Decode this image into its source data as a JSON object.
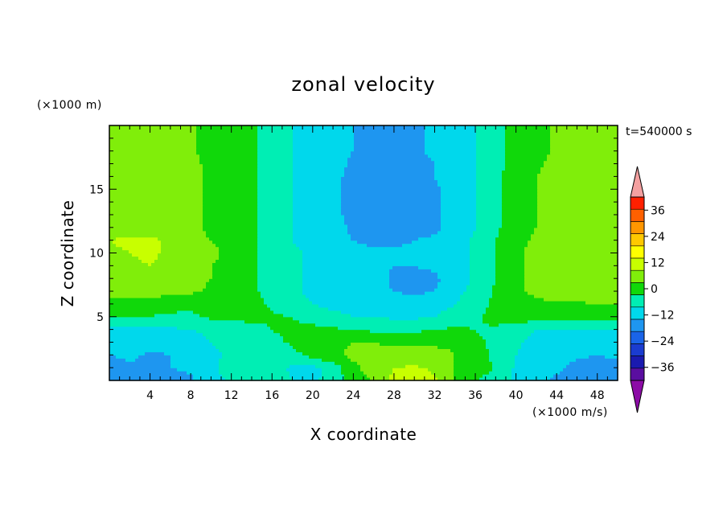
{
  "chart_data": {
    "type": "heatmap",
    "title": "zonal velocity",
    "time_label": "t=540000 s",
    "xlabel": "X coordinate",
    "ylabel": "Z coordinate",
    "x_unit": "(×1000 m/s)",
    "y_unit": "(×1000 m)",
    "xlim": [
      0,
      50
    ],
    "ylim": [
      0,
      20
    ],
    "x_ticks": [
      4,
      8,
      12,
      16,
      20,
      24,
      28,
      32,
      36,
      40,
      44,
      48
    ],
    "y_ticks": [
      5,
      10,
      15
    ],
    "colorbar": {
      "levels": [
        -42,
        -36,
        -30,
        -24,
        -18,
        -12,
        -6,
        0,
        6,
        12,
        18,
        24,
        30,
        36,
        42
      ],
      "tick_labels": [
        "36",
        "24",
        "12",
        "0",
        "−12",
        "−24",
        "−36"
      ],
      "tick_values": [
        36,
        24,
        12,
        0,
        -12,
        -24,
        -36
      ],
      "colors": [
        "#5a0ea0",
        "#1a1ab0",
        "#1a3cd0",
        "#1a64e8",
        "#1e96f0",
        "#00d8ec",
        "#00eeb4",
        "#10d80a",
        "#80ee0a",
        "#c8ff00",
        "#ffff00",
        "#ffc800",
        "#ff9600",
        "#ff6000",
        "#ff2000"
      ],
      "under_color": "#8c0ca6",
      "over_color": "#f4a0a0"
    },
    "x_nodes": [
      0,
      2,
      4,
      6,
      8,
      10,
      12,
      14,
      16,
      18,
      20,
      22,
      24,
      26,
      28,
      30,
      32,
      34,
      36,
      38,
      40,
      42,
      44,
      46,
      48,
      50
    ],
    "z_nodes": [
      0,
      1,
      2,
      3,
      4,
      5,
      6,
      7,
      8,
      9,
      10,
      11,
      12,
      13,
      14,
      15,
      16,
      17,
      18,
      19,
      20
    ],
    "values": [
      [
        -17,
        -16,
        -15,
        -15,
        -13,
        -8,
        -5,
        -3,
        -2,
        -6,
        -7,
        -4,
        4,
        6,
        14,
        15,
        13,
        5,
        0,
        -1,
        -8,
        -10,
        -13,
        -17,
        -18,
        -16
      ],
      [
        -14,
        -13,
        -12,
        -12,
        -11,
        -7,
        -4,
        -2,
        -3,
        -7,
        -8,
        -4,
        5,
        8,
        12,
        13,
        11,
        6,
        1,
        0,
        -7,
        -9,
        -11,
        -14,
        -15,
        -14
      ],
      [
        -12,
        -11,
        -13,
        -12,
        -10,
        -7,
        -5,
        -4,
        -4,
        -2,
        2,
        5,
        7,
        8,
        8,
        9,
        8,
        6,
        2,
        -1,
        -6,
        -9,
        -10,
        -11,
        -12,
        -11
      ],
      [
        -10,
        -9,
        -10,
        -9,
        -8,
        -6,
        -5,
        -4,
        -2,
        1,
        4,
        5,
        6,
        6,
        5,
        5,
        5,
        5,
        1,
        -1,
        -5,
        -8,
        -9,
        -9,
        -9,
        -9
      ],
      [
        -8,
        -7,
        -7,
        -7,
        -6,
        -5,
        -4,
        -3,
        0,
        2,
        2,
        1,
        0,
        -1,
        -1,
        -1,
        0,
        1,
        0,
        -1,
        -4,
        -6,
        -7,
        -7,
        -7,
        -7
      ],
      [
        1,
        1,
        0,
        -1,
        -1,
        1,
        2,
        2,
        1,
        0,
        -3,
        -5,
        -6,
        -6,
        -7,
        -7,
        -6,
        -4,
        -1,
        2,
        3,
        3,
        2,
        3,
        3,
        3
      ],
      [
        3,
        3,
        2,
        2,
        1,
        2,
        3,
        2,
        -1,
        -4,
        -6,
        -7,
        -7,
        -8,
        -9,
        -9,
        -8,
        -6,
        -2,
        1,
        4,
        5,
        5,
        5,
        6,
        6
      ],
      [
        8,
        9,
        9,
        8,
        7,
        5,
        3,
        1,
        -2,
        -5,
        -7,
        -8,
        -9,
        -10,
        -12,
        -13,
        -12,
        -8,
        -4,
        1,
        5,
        7,
        9,
        10,
        11,
        11
      ],
      [
        9,
        10,
        10,
        9,
        8,
        6,
        4,
        1,
        -2,
        -5,
        -7,
        -8,
        -9,
        -10,
        -13,
        -14,
        -13,
        -9,
        -5,
        0,
        5,
        8,
        9,
        11,
        12,
        12
      ],
      [
        10,
        11,
        12,
        10,
        8,
        6,
        4,
        1,
        -2,
        -5,
        -7,
        -8,
        -10,
        -10,
        -12,
        -12,
        -11,
        -9,
        -5,
        0,
        5,
        8,
        9,
        10,
        11,
        11
      ],
      [
        11,
        12,
        13,
        11,
        9,
        7,
        5,
        1,
        -2,
        -5,
        -7,
        -9,
        -11,
        -11,
        -11,
        -11,
        -10,
        -9,
        -5,
        0,
        5,
        8,
        8,
        9,
        10,
        10
      ],
      [
        12,
        13,
        13,
        11,
        8,
        6,
        4,
        1,
        -2,
        -6,
        -8,
        -10,
        -12,
        -13,
        -13,
        -12,
        -11,
        -9,
        -5,
        0,
        4,
        7,
        8,
        9,
        10,
        10
      ],
      [
        10,
        10,
        10,
        9,
        7,
        5,
        3,
        1,
        -2,
        -6,
        -8,
        -10,
        -13,
        -14,
        -14,
        -14,
        -13,
        -10,
        -6,
        -1,
        3,
        6,
        7,
        9,
        10,
        10
      ],
      [
        9,
        10,
        10,
        9,
        8,
        5,
        2,
        1,
        -2,
        -6,
        -9,
        -11,
        -13,
        -14,
        -15,
        -15,
        -13,
        -10,
        -6,
        -1,
        3,
        6,
        8,
        10,
        11,
        11
      ],
      [
        9,
        9,
        10,
        9,
        8,
        5,
        1,
        1,
        -2,
        -6,
        -9,
        -11,
        -14,
        -15,
        -15,
        -15,
        -13,
        -10,
        -6,
        -1,
        3,
        6,
        9,
        11,
        11,
        11
      ],
      [
        9,
        9,
        9,
        9,
        8,
        5,
        1,
        1,
        -2,
        -6,
        -9,
        -11,
        -14,
        -15,
        -15,
        -15,
        -13,
        -10,
        -6,
        -1,
        2,
        6,
        9,
        11,
        11,
        11
      ],
      [
        8,
        8,
        9,
        8,
        8,
        5,
        1,
        1,
        -2,
        -6,
        -9,
        -11,
        -13,
        -15,
        -15,
        -14,
        -12,
        -9,
        -6,
        -1,
        2,
        6,
        8,
        10,
        11,
        11
      ],
      [
        7,
        8,
        8,
        8,
        7,
        5,
        1,
        1,
        -2,
        -6,
        -8,
        -10,
        -13,
        -14,
        -15,
        -14,
        -12,
        -9,
        -6,
        -1,
        1,
        5,
        8,
        10,
        10,
        10
      ],
      [
        7,
        7,
        8,
        8,
        7,
        4,
        2,
        1,
        -2,
        -6,
        -8,
        -10,
        -12,
        -14,
        -14,
        -13,
        -11,
        -9,
        -6,
        -1,
        1,
        4,
        7,
        9,
        10,
        10
      ],
      [
        7,
        7,
        8,
        8,
        7,
        4,
        2,
        1,
        -2,
        -6,
        -8,
        -10,
        -12,
        -14,
        -14,
        -13,
        -11,
        -9,
        -6,
        -1,
        1,
        4,
        7,
        9,
        10,
        10
      ],
      [
        7,
        7,
        8,
        8,
        7,
        4,
        2,
        1,
        -2,
        -6,
        -8,
        -10,
        -12,
        -14,
        -14,
        -13,
        -11,
        -9,
        -6,
        -1,
        1,
        4,
        7,
        9,
        10,
        10
      ]
    ]
  }
}
